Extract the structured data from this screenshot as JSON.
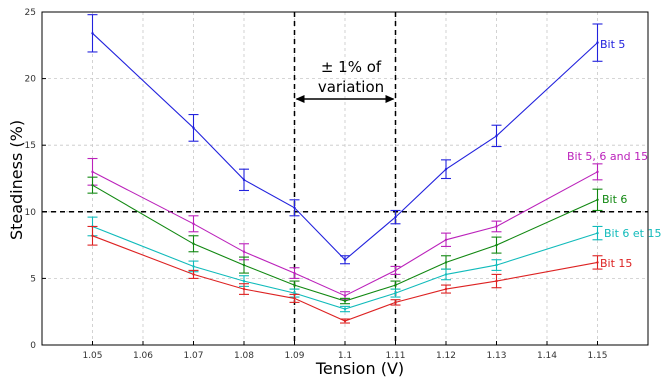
{
  "chart_data": {
    "type": "line",
    "xlabel": "Tension (V)",
    "ylabel": "Steadiness (%)",
    "xlim": [
      1.04,
      1.16
    ],
    "ylim": [
      0,
      25
    ],
    "x_ticks": [
      "1.05",
      "1.06",
      "1.07",
      "1.08",
      "1.09",
      "1.1",
      "1.11",
      "1.12",
      "1.13",
      "1.14",
      "1.15"
    ],
    "y_ticks": [
      "0",
      "5",
      "10",
      "15",
      "20",
      "25"
    ],
    "grid": true,
    "x": [
      1.05,
      1.07,
      1.08,
      1.09,
      1.1,
      1.11,
      1.12,
      1.13,
      1.15
    ],
    "series": [
      {
        "name": "Bit 5",
        "color": "#2222dd",
        "values": [
          23.4,
          16.3,
          12.4,
          10.3,
          6.4,
          9.6,
          13.2,
          15.7,
          22.7
        ],
        "errors": [
          1.4,
          1.0,
          0.8,
          0.6,
          0.3,
          0.5,
          0.7,
          0.8,
          1.4
        ]
      },
      {
        "name": "Bit 5, 6 and 15",
        "color": "#bb22bb",
        "values": [
          13.0,
          9.1,
          7.0,
          5.4,
          3.7,
          5.6,
          7.9,
          8.9,
          13.0
        ],
        "errors": [
          1.0,
          0.6,
          0.6,
          0.4,
          0.3,
          0.3,
          0.5,
          0.4,
          0.6
        ]
      },
      {
        "name": "Bit 6",
        "color": "#118811",
        "values": [
          12.0,
          7.6,
          6.0,
          4.5,
          3.3,
          4.5,
          6.2,
          7.5,
          10.9
        ],
        "errors": [
          0.6,
          0.6,
          0.6,
          0.3,
          0.2,
          0.3,
          0.5,
          0.6,
          0.8
        ]
      },
      {
        "name": "Bit 6 et 15",
        "color": "#11bbbb",
        "values": [
          8.9,
          5.9,
          4.8,
          3.9,
          2.7,
          3.9,
          5.3,
          6.0,
          8.4
        ],
        "errors": [
          0.7,
          0.4,
          0.4,
          0.3,
          0.2,
          0.3,
          0.4,
          0.4,
          0.5
        ]
      },
      {
        "name": "Bit 15",
        "color": "#dd2222",
        "values": [
          8.2,
          5.3,
          4.2,
          3.5,
          1.8,
          3.2,
          4.2,
          4.8,
          6.2
        ],
        "errors": [
          0.7,
          0.3,
          0.4,
          0.3,
          0.15,
          0.2,
          0.3,
          0.5,
          0.5
        ]
      }
    ],
    "reference_line": {
      "y": 10
    },
    "vertical_markers": [
      1.09,
      1.11
    ],
    "annotation": {
      "lines": [
        "± 1% of",
        "variation"
      ]
    }
  }
}
